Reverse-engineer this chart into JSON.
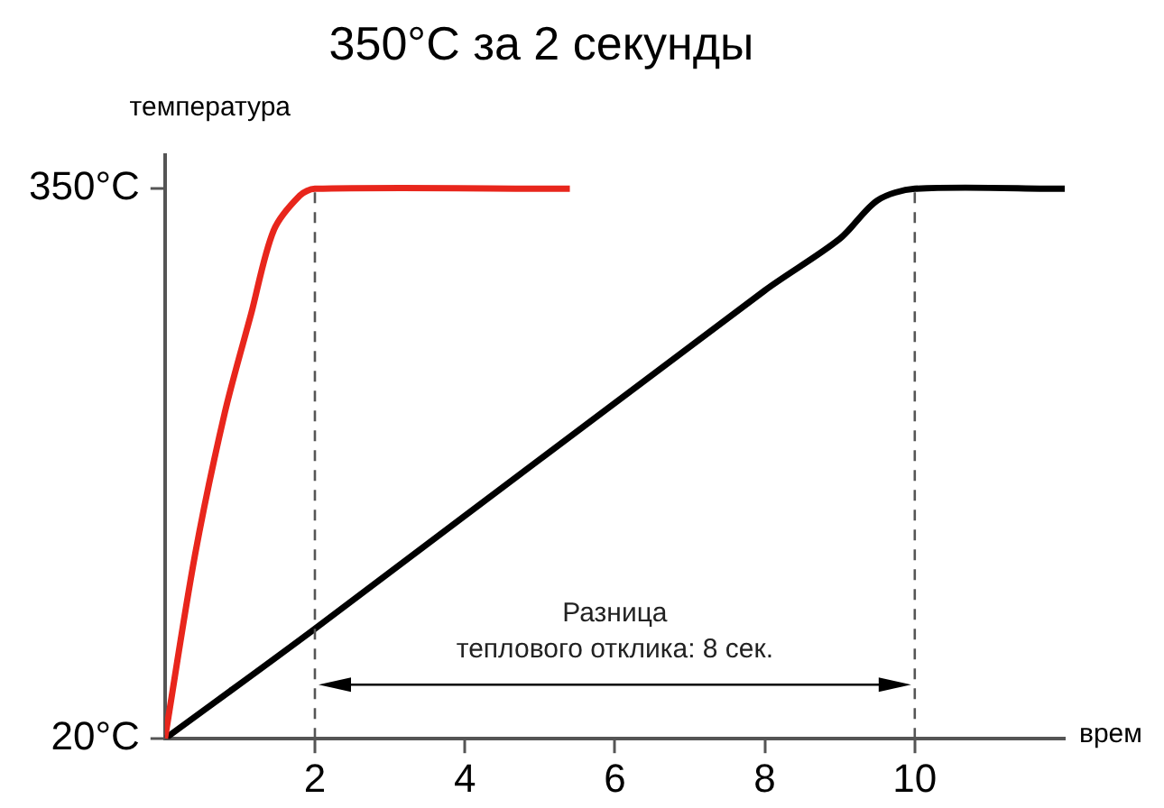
{
  "chart_data": {
    "type": "line",
    "title": "350°C за 2 секунды",
    "ylabel": "температура",
    "xlabel": "врем",
    "xlim": [
      0,
      12
    ],
    "ylim": [
      20,
      370
    ],
    "xticks": [
      2,
      4,
      6,
      8,
      10
    ],
    "yticks": [
      {
        "value": 20,
        "label": "20°C"
      },
      {
        "value": 350,
        "label": "350°C"
      }
    ],
    "grid": false,
    "legend": false,
    "marker": "none",
    "line_style": "solid",
    "series": [
      {
        "color": "#e8261c",
        "x": [
          0,
          0.4,
          0.8,
          1.15,
          1.45,
          1.8,
          2,
          5.4
        ],
        "values": [
          20,
          130,
          216,
          275,
          325,
          346,
          350,
          350
        ]
      },
      {
        "color": "#000000",
        "x": [
          0,
          2,
          8,
          9,
          9.5,
          10,
          12
        ],
        "values": [
          20,
          86,
          289,
          320,
          343,
          350,
          350
        ]
      }
    ],
    "ref_lines": [
      {
        "axis": "x",
        "value": 2,
        "color": "#555555",
        "line_style": "dashed"
      },
      {
        "axis": "x",
        "value": 10,
        "color": "#555555",
        "line_style": "dashed"
      }
    ],
    "annotations": [
      "Разница\nтеплового отклика: 8 сек."
    ]
  }
}
